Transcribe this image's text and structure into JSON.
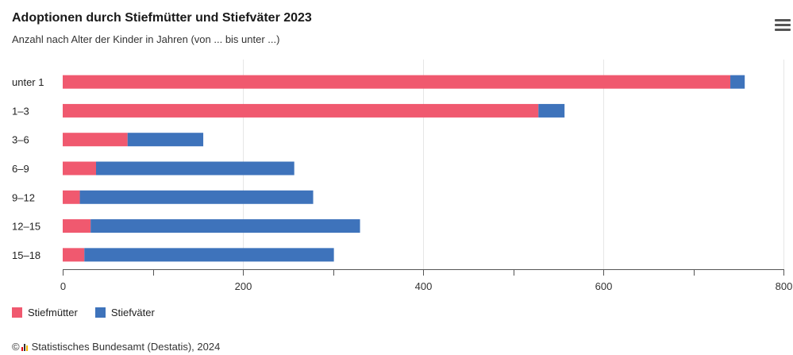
{
  "header": {
    "title": "Adoptionen durch Stiefmütter und Stiefväter 2023",
    "subtitle": "Anzahl nach Alter der Kinder in Jahren (von ... bis unter ...)",
    "menu_icon": "hamburger-menu-icon"
  },
  "chart_data": {
    "type": "bar",
    "orientation": "horizontal",
    "stacked": true,
    "categories": [
      "unter 1",
      "1–3",
      "3–6",
      "6–9",
      "9–12",
      "12–15",
      "15–18"
    ],
    "series": [
      {
        "name": "Stiefmütter",
        "color": "#f0596f",
        "values": [
          741,
          528,
          72,
          37,
          19,
          31,
          24
        ]
      },
      {
        "name": "Stiefväter",
        "color": "#3e73bb",
        "values": [
          16,
          29,
          84,
          220,
          259,
          299,
          277
        ]
      }
    ],
    "xlim": [
      0,
      800
    ],
    "xticks": [
      "0",
      "200",
      "400",
      "600",
      "800"
    ],
    "grid": true,
    "legend": "bottom-left"
  },
  "legend": {
    "items": [
      {
        "label": "Stiefmütter",
        "color": "#f0596f"
      },
      {
        "label": "Stiefväter",
        "color": "#3e73bb"
      }
    ]
  },
  "credits": {
    "copyright": "©",
    "text": "Statistisches Bundesamt (Destatis), 2024"
  }
}
